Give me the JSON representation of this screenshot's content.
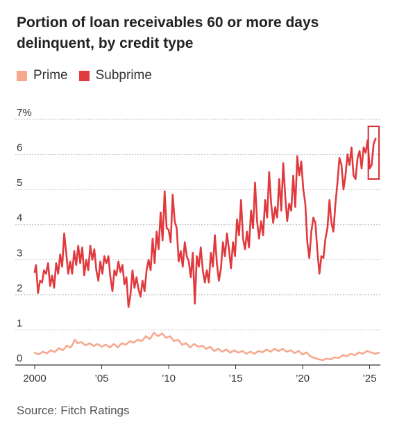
{
  "title": "Portion of loan receivables 60 or more days delinquent, by credit type",
  "source": "Source: Fitch Ratings",
  "colors": {
    "prime": "#f5a98e",
    "subprime": "#e03a3e",
    "grid": "#bbbbbb",
    "highlight": "#d62a30"
  },
  "chart_data": {
    "type": "line",
    "title": "Portion of loan receivables 60 or more days delinquent, by credit type",
    "xlabel": "",
    "ylabel": "",
    "ylim": [
      0,
      7
    ],
    "xlim": [
      2000,
      2025.8
    ],
    "grid": true,
    "legend": "top-left",
    "y_ticks": [
      {
        "value": 7,
        "label": "7%"
      },
      {
        "value": 6,
        "label": "6"
      },
      {
        "value": 5,
        "label": "5"
      },
      {
        "value": 4,
        "label": "4"
      },
      {
        "value": 3,
        "label": "3"
      },
      {
        "value": 2,
        "label": "2"
      },
      {
        "value": 1,
        "label": "1"
      },
      {
        "value": 0,
        "label": "0"
      }
    ],
    "x_ticks": [
      {
        "value": 2000,
        "label": "2000"
      },
      {
        "value": 2005,
        "label": "’05"
      },
      {
        "value": 2010,
        "label": "’10"
      },
      {
        "value": 2015,
        "label": "’15"
      },
      {
        "value": 2020,
        "label": "’20"
      },
      {
        "value": 2025,
        "label": "’25"
      }
    ],
    "annotation": {
      "type": "box",
      "x": [
        2024.9,
        2025.7
      ],
      "y": [
        5.3,
        6.8
      ]
    },
    "series": [
      {
        "name": "Prime",
        "color": "#f5a98e",
        "points": [
          [
            2000.0,
            0.35
          ],
          [
            2000.3,
            0.3
          ],
          [
            2000.6,
            0.38
          ],
          [
            2000.9,
            0.33
          ],
          [
            2001.2,
            0.42
          ],
          [
            2001.5,
            0.37
          ],
          [
            2001.8,
            0.48
          ],
          [
            2002.1,
            0.42
          ],
          [
            2002.4,
            0.55
          ],
          [
            2002.7,
            0.5
          ],
          [
            2003.0,
            0.72
          ],
          [
            2003.2,
            0.62
          ],
          [
            2003.5,
            0.65
          ],
          [
            2003.8,
            0.56
          ],
          [
            2004.1,
            0.62
          ],
          [
            2004.4,
            0.54
          ],
          [
            2004.7,
            0.6
          ],
          [
            2005.0,
            0.52
          ],
          [
            2005.3,
            0.58
          ],
          [
            2005.6,
            0.5
          ],
          [
            2005.9,
            0.6
          ],
          [
            2006.2,
            0.5
          ],
          [
            2006.5,
            0.62
          ],
          [
            2006.8,
            0.58
          ],
          [
            2007.1,
            0.68
          ],
          [
            2007.4,
            0.64
          ],
          [
            2007.7,
            0.72
          ],
          [
            2008.0,
            0.68
          ],
          [
            2008.3,
            0.82
          ],
          [
            2008.6,
            0.74
          ],
          [
            2008.9,
            0.92
          ],
          [
            2009.2,
            0.82
          ],
          [
            2009.5,
            0.9
          ],
          [
            2009.8,
            0.78
          ],
          [
            2010.1,
            0.82
          ],
          [
            2010.4,
            0.68
          ],
          [
            2010.7,
            0.72
          ],
          [
            2011.0,
            0.58
          ],
          [
            2011.3,
            0.62
          ],
          [
            2011.6,
            0.5
          ],
          [
            2011.9,
            0.6
          ],
          [
            2012.2,
            0.52
          ],
          [
            2012.5,
            0.55
          ],
          [
            2012.8,
            0.46
          ],
          [
            2013.1,
            0.52
          ],
          [
            2013.4,
            0.4
          ],
          [
            2013.7,
            0.46
          ],
          [
            2014.0,
            0.38
          ],
          [
            2014.3,
            0.44
          ],
          [
            2014.6,
            0.35
          ],
          [
            2014.9,
            0.42
          ],
          [
            2015.2,
            0.35
          ],
          [
            2015.5,
            0.4
          ],
          [
            2015.8,
            0.32
          ],
          [
            2016.1,
            0.38
          ],
          [
            2016.4,
            0.32
          ],
          [
            2016.7,
            0.4
          ],
          [
            2017.0,
            0.36
          ],
          [
            2017.3,
            0.44
          ],
          [
            2017.6,
            0.38
          ],
          [
            2017.9,
            0.46
          ],
          [
            2018.2,
            0.4
          ],
          [
            2018.5,
            0.46
          ],
          [
            2018.8,
            0.38
          ],
          [
            2019.1,
            0.42
          ],
          [
            2019.4,
            0.34
          ],
          [
            2019.7,
            0.4
          ],
          [
            2020.0,
            0.3
          ],
          [
            2020.3,
            0.36
          ],
          [
            2020.6,
            0.24
          ],
          [
            2020.9,
            0.2
          ],
          [
            2021.2,
            0.16
          ],
          [
            2021.5,
            0.14
          ],
          [
            2021.8,
            0.18
          ],
          [
            2022.1,
            0.16
          ],
          [
            2022.4,
            0.22
          ],
          [
            2022.7,
            0.2
          ],
          [
            2023.0,
            0.28
          ],
          [
            2023.3,
            0.25
          ],
          [
            2023.6,
            0.32
          ],
          [
            2023.9,
            0.28
          ],
          [
            2024.2,
            0.36
          ],
          [
            2024.5,
            0.32
          ],
          [
            2024.8,
            0.4
          ],
          [
            2025.1,
            0.36
          ],
          [
            2025.4,
            0.32
          ],
          [
            2025.7,
            0.35
          ]
        ]
      },
      {
        "name": "Subprime",
        "color": "#e03a3e",
        "points": [
          [
            2000.0,
            2.65
          ],
          [
            2000.1,
            2.85
          ],
          [
            2000.25,
            2.05
          ],
          [
            2000.4,
            2.4
          ],
          [
            2000.55,
            2.35
          ],
          [
            2000.7,
            2.7
          ],
          [
            2000.85,
            2.6
          ],
          [
            2001.0,
            2.9
          ],
          [
            2001.15,
            2.25
          ],
          [
            2001.3,
            2.55
          ],
          [
            2001.45,
            2.2
          ],
          [
            2001.6,
            2.9
          ],
          [
            2001.75,
            2.6
          ],
          [
            2001.9,
            3.15
          ],
          [
            2002.05,
            2.8
          ],
          [
            2002.2,
            3.75
          ],
          [
            2002.35,
            3.2
          ],
          [
            2002.5,
            2.6
          ],
          [
            2002.65,
            2.95
          ],
          [
            2002.8,
            2.6
          ],
          [
            2002.95,
            3.25
          ],
          [
            2003.1,
            2.85
          ],
          [
            2003.25,
            3.4
          ],
          [
            2003.4,
            2.9
          ],
          [
            2003.55,
            3.35
          ],
          [
            2003.7,
            2.55
          ],
          [
            2003.85,
            3.0
          ],
          [
            2004.0,
            2.7
          ],
          [
            2004.15,
            3.4
          ],
          [
            2004.3,
            3.0
          ],
          [
            2004.45,
            3.3
          ],
          [
            2004.6,
            2.7
          ],
          [
            2004.75,
            2.4
          ],
          [
            2004.9,
            2.95
          ],
          [
            2005.05,
            2.6
          ],
          [
            2005.2,
            3.1
          ],
          [
            2005.35,
            2.9
          ],
          [
            2005.5,
            3.1
          ],
          [
            2005.65,
            2.5
          ],
          [
            2005.8,
            2.1
          ],
          [
            2005.95,
            2.7
          ],
          [
            2006.1,
            2.55
          ],
          [
            2006.25,
            2.95
          ],
          [
            2006.4,
            2.65
          ],
          [
            2006.55,
            2.85
          ],
          [
            2006.7,
            2.3
          ],
          [
            2006.85,
            2.5
          ],
          [
            2007.0,
            1.65
          ],
          [
            2007.15,
            2.0
          ],
          [
            2007.3,
            2.7
          ],
          [
            2007.45,
            2.2
          ],
          [
            2007.6,
            2.5
          ],
          [
            2007.75,
            2.15
          ],
          [
            2007.9,
            1.95
          ],
          [
            2008.05,
            2.4
          ],
          [
            2008.2,
            2.1
          ],
          [
            2008.35,
            2.7
          ],
          [
            2008.5,
            3.0
          ],
          [
            2008.65,
            2.7
          ],
          [
            2008.8,
            3.6
          ],
          [
            2008.95,
            2.9
          ],
          [
            2009.1,
            3.8
          ],
          [
            2009.25,
            3.3
          ],
          [
            2009.4,
            4.35
          ],
          [
            2009.55,
            3.55
          ],
          [
            2009.7,
            4.95
          ],
          [
            2009.85,
            3.9
          ],
          [
            2010.0,
            3.85
          ],
          [
            2010.15,
            3.5
          ],
          [
            2010.3,
            4.85
          ],
          [
            2010.45,
            4.1
          ],
          [
            2010.6,
            3.9
          ],
          [
            2010.75,
            2.95
          ],
          [
            2010.9,
            3.25
          ],
          [
            2011.05,
            2.8
          ],
          [
            2011.2,
            3.5
          ],
          [
            2011.35,
            3.1
          ],
          [
            2011.5,
            2.95
          ],
          [
            2011.65,
            2.5
          ],
          [
            2011.8,
            3.2
          ],
          [
            2011.95,
            1.75
          ],
          [
            2012.1,
            3.1
          ],
          [
            2012.25,
            2.8
          ],
          [
            2012.4,
            3.35
          ],
          [
            2012.55,
            2.7
          ],
          [
            2012.7,
            2.35
          ],
          [
            2012.85,
            2.7
          ],
          [
            2013.0,
            2.35
          ],
          [
            2013.15,
            3.2
          ],
          [
            2013.3,
            2.8
          ],
          [
            2013.45,
            3.7
          ],
          [
            2013.6,
            2.9
          ],
          [
            2013.75,
            2.4
          ],
          [
            2013.9,
            2.75
          ],
          [
            2014.05,
            3.5
          ],
          [
            2014.2,
            3.1
          ],
          [
            2014.35,
            3.75
          ],
          [
            2014.5,
            3.3
          ],
          [
            2014.65,
            2.75
          ],
          [
            2014.8,
            3.5
          ],
          [
            2014.95,
            3.1
          ],
          [
            2015.1,
            4.15
          ],
          [
            2015.25,
            3.7
          ],
          [
            2015.4,
            4.7
          ],
          [
            2015.55,
            3.6
          ],
          [
            2015.7,
            3.3
          ],
          [
            2015.85,
            3.8
          ],
          [
            2016.0,
            3.35
          ],
          [
            2016.15,
            4.4
          ],
          [
            2016.3,
            3.9
          ],
          [
            2016.45,
            5.2
          ],
          [
            2016.6,
            4.1
          ],
          [
            2016.75,
            3.6
          ],
          [
            2016.9,
            4.1
          ],
          [
            2017.05,
            3.7
          ],
          [
            2017.2,
            4.7
          ],
          [
            2017.35,
            4.2
          ],
          [
            2017.5,
            5.5
          ],
          [
            2017.65,
            4.6
          ],
          [
            2017.8,
            4.05
          ],
          [
            2017.95,
            4.5
          ],
          [
            2018.1,
            4.2
          ],
          [
            2018.25,
            5.3
          ],
          [
            2018.4,
            4.4
          ],
          [
            2018.55,
            5.75
          ],
          [
            2018.7,
            4.8
          ],
          [
            2018.85,
            4.1
          ],
          [
            2019.0,
            4.6
          ],
          [
            2019.15,
            4.4
          ],
          [
            2019.3,
            5.4
          ],
          [
            2019.45,
            4.5
          ],
          [
            2019.6,
            5.95
          ],
          [
            2019.75,
            5.4
          ],
          [
            2019.9,
            5.8
          ],
          [
            2020.05,
            5.0
          ],
          [
            2020.2,
            4.6
          ],
          [
            2020.35,
            3.5
          ],
          [
            2020.5,
            3.05
          ],
          [
            2020.65,
            3.8
          ],
          [
            2020.8,
            4.2
          ],
          [
            2020.95,
            4.05
          ],
          [
            2021.1,
            3.25
          ],
          [
            2021.25,
            2.6
          ],
          [
            2021.4,
            3.1
          ],
          [
            2021.55,
            3.05
          ],
          [
            2021.7,
            3.6
          ],
          [
            2021.85,
            3.9
          ],
          [
            2022.0,
            4.7
          ],
          [
            2022.15,
            4.05
          ],
          [
            2022.3,
            3.8
          ],
          [
            2022.45,
            4.6
          ],
          [
            2022.6,
            5.2
          ],
          [
            2022.75,
            5.9
          ],
          [
            2022.9,
            5.7
          ],
          [
            2023.05,
            5.0
          ],
          [
            2023.2,
            5.4
          ],
          [
            2023.35,
            6.0
          ],
          [
            2023.5,
            5.7
          ],
          [
            2023.65,
            6.2
          ],
          [
            2023.8,
            5.4
          ],
          [
            2023.95,
            5.3
          ],
          [
            2024.1,
            5.9
          ],
          [
            2024.25,
            6.1
          ],
          [
            2024.4,
            5.6
          ],
          [
            2024.55,
            6.2
          ],
          [
            2024.7,
            6.05
          ],
          [
            2024.85,
            6.4
          ],
          [
            2025.0,
            5.6
          ],
          [
            2025.15,
            5.7
          ],
          [
            2025.3,
            6.3
          ],
          [
            2025.45,
            6.45
          ]
        ]
      }
    ]
  }
}
